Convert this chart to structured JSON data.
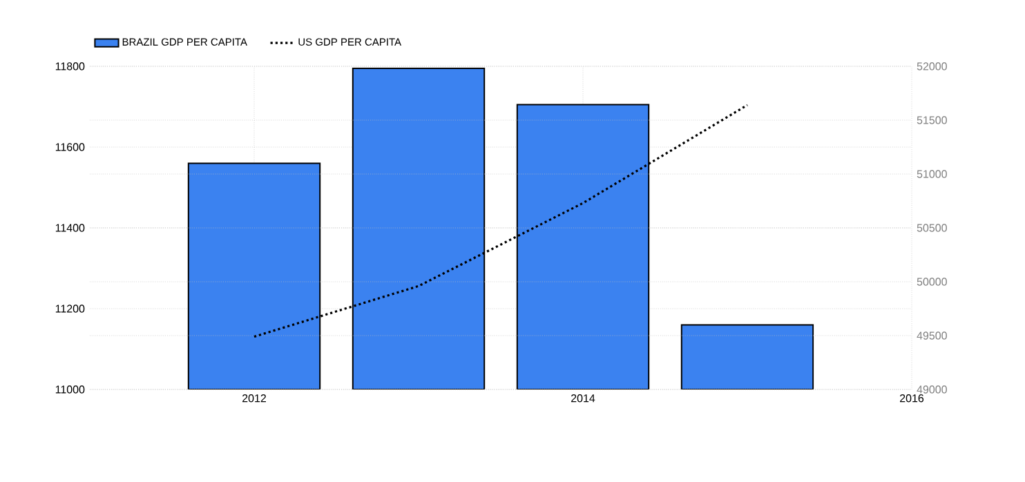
{
  "chart_data": {
    "type": "bar",
    "x": [
      2012,
      2013,
      2014,
      2015
    ],
    "series": [
      {
        "name": "BRAZIL GDP PER CAPITA",
        "color": "#3b82f0",
        "values": [
          11560,
          11795,
          11705,
          11160
        ]
      },
      {
        "name": "US GDP PER CAPITA",
        "type": "line",
        "axis": "y2",
        "color": "#000000",
        "line_style": "dotted",
        "marker": "none",
        "values": [
          49490,
          49960,
          50730,
          51640
        ]
      }
    ],
    "xlim": [
      2011,
      2016
    ],
    "xticks": [
      2012,
      2014,
      2016
    ],
    "ylim": [
      11000,
      11800
    ],
    "yticks": [
      11000,
      11200,
      11400,
      11600,
      11800
    ],
    "y2lim": [
      49000,
      52000
    ],
    "y2ticks": [
      49000,
      49500,
      50000,
      50500,
      51000,
      51500,
      52000
    ],
    "grid": true,
    "legend": "top left"
  }
}
